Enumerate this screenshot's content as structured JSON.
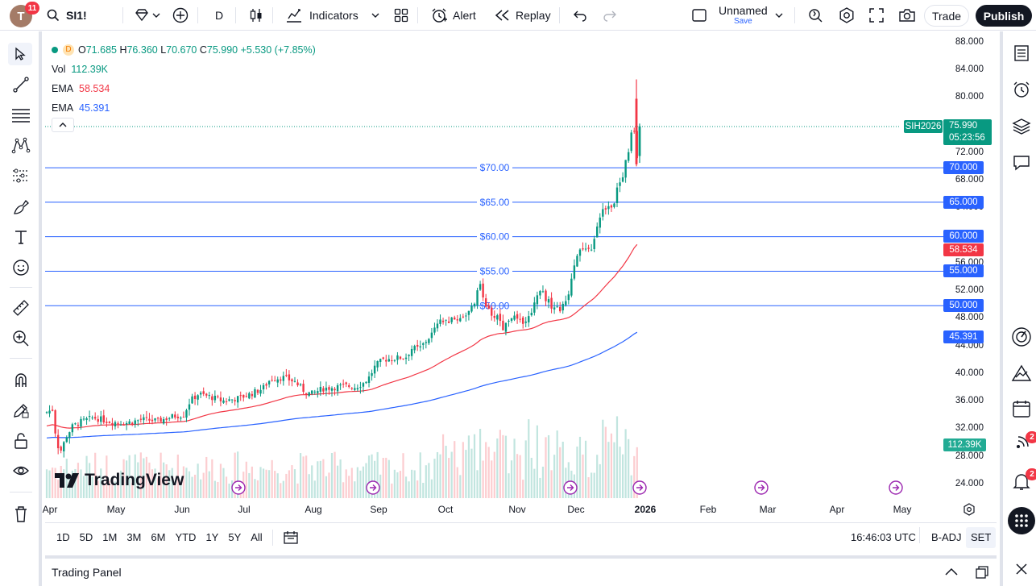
{
  "user": {
    "initial": "T",
    "notifications": "11"
  },
  "toolbar": {
    "symbol": "SI1!",
    "interval": "D",
    "indicators_label": "Indicators",
    "alert_label": "Alert",
    "replay_label": "Replay",
    "layout_name": "Unnamed",
    "save_label": "Save",
    "trade_label": "Trade",
    "publish_label": "Publish"
  },
  "legend": {
    "interval": "D",
    "ohlc": {
      "o_label": "O",
      "o": "71.685",
      "h_label": "H",
      "h": "76.360",
      "l_label": "L",
      "l": "70.670",
      "c_label": "C",
      "c": "75.990",
      "change": "+5.530 (+7.85%)"
    },
    "vol_label": "Vol",
    "vol_value": "112.39K",
    "ema1_label": "EMA",
    "ema1_value": "58.534",
    "ema2_label": "EMA",
    "ema2_value": "45.391"
  },
  "price_axis": [
    "88.000",
    "84.000",
    "80.000",
    "76.000",
    "72.000",
    "68.000",
    "64.000",
    "60.000",
    "56.000",
    "52.000",
    "48.000",
    "44.000",
    "40.000",
    "36.000",
    "32.000",
    "28.000",
    "24.000"
  ],
  "price_labels": {
    "symbol_tag": "SIH2026",
    "last_price": "75.990",
    "countdown": "05:23:56",
    "lvl70": "70.000",
    "lvl65": "65.000",
    "lvl60": "60.000",
    "ema1": "58.534",
    "lvl55": "55.000",
    "lvl50": "50.000",
    "ema2": "45.391",
    "vol": "112.39K"
  },
  "horizontal_lines": [
    {
      "price": 70,
      "label": "$70.00"
    },
    {
      "price": 65,
      "label": "$65.00"
    },
    {
      "price": 60,
      "label": "$60.00"
    },
    {
      "price": 55,
      "label": "$55.00"
    },
    {
      "price": 50,
      "label": "$50.00"
    }
  ],
  "time_axis": [
    "Apr",
    "May",
    "Jun",
    "Jul",
    "Aug",
    "Sep",
    "Oct",
    "Nov",
    "Dec",
    "2026",
    "Feb",
    "Mar",
    "Apr",
    "May"
  ],
  "watermark": "TradingView",
  "bottom": {
    "ranges": [
      "1D",
      "5D",
      "1M",
      "3M",
      "6M",
      "YTD",
      "1Y",
      "5Y",
      "All"
    ],
    "clock": "16:46:03 UTC",
    "badj": "B-ADJ",
    "set": "SET"
  },
  "trading_panel_label": "Trading Panel",
  "right_badges": {
    "ideas": "2",
    "alerts": "2"
  },
  "colors": {
    "up": "#089981",
    "down": "#f23645",
    "ema_fast": "#f23645",
    "ema_slow": "#2962ff",
    "hline": "#2962ff",
    "last_price_bg": "#089981"
  }
}
